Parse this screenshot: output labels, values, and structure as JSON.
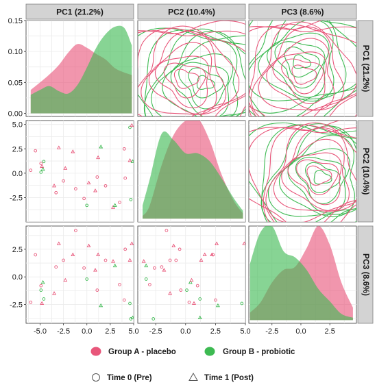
{
  "chart_data": {
    "type": "scatter",
    "title": "",
    "variables": [
      {
        "key": "PC1",
        "label": "PC1 (21.2%)"
      },
      {
        "key": "PC2",
        "label": "PC2 (10.4%)"
      },
      {
        "key": "PC3",
        "label": "PC3 (8.6%)"
      }
    ],
    "axes": {
      "x": {
        "PC1": {
          "range": [
            -6.5,
            5.0
          ],
          "ticks": [
            -5.0,
            -2.5,
            0.0,
            2.5,
            5.0
          ],
          "tick_labels": [
            "-5.0",
            "-2.5",
            "0.0",
            "2.5",
            "5.0"
          ]
        },
        "PC2": {
          "range": [
            -4.0,
            5.0
          ],
          "ticks": [
            -2.5,
            0.0,
            2.5,
            5.0
          ],
          "tick_labels": [
            "-2.5",
            "0.0",
            "2.5",
            "5.0"
          ]
        },
        "PC3": {
          "range": [
            -4.5,
            4.8
          ],
          "ticks": [
            -2.5,
            0.0,
            2.5
          ],
          "tick_labels": [
            "-2.5",
            "0.0",
            "2.5"
          ]
        }
      },
      "y": {
        "density": {
          "range": [
            -0.005,
            0.15
          ],
          "ticks": [
            0.0,
            0.05,
            0.1,
            0.15
          ],
          "tick_labels": [
            "0.00",
            "0.05",
            "0.10",
            "0.15"
          ]
        },
        "PC2": {
          "range": [
            -5.0,
            5.4
          ],
          "ticks": [
            -2.5,
            0.0,
            2.5,
            5.0
          ],
          "tick_labels": [
            "-2.5",
            "0.0",
            "2.5",
            "5.0"
          ]
        },
        "PC3": {
          "range": [
            -4.2,
            4.6
          ],
          "ticks": [
            -2.5,
            0.0,
            2.5
          ],
          "tick_labels": [
            "-2.5",
            "0.0",
            "2.5"
          ]
        }
      }
    },
    "groups": [
      {
        "key": "A",
        "name": "Group A - placebo",
        "color": "#e8567a"
      },
      {
        "key": "B",
        "name": "Group B - probiotic",
        "color": "#3dba52"
      }
    ],
    "times": [
      {
        "key": "T0",
        "name": "Time 0 (Pre)",
        "shape": "circle"
      },
      {
        "key": "T1",
        "name": "Time 1 (Post)",
        "shape": "triangle"
      }
    ],
    "density_PC1": {
      "x": [
        -6.0,
        -5.0,
        -4.0,
        -3.0,
        -2.0,
        -1.0,
        0.0,
        1.0,
        2.0,
        3.0,
        4.0,
        4.8
      ],
      "A": [
        0.038,
        0.05,
        0.063,
        0.078,
        0.098,
        0.112,
        0.106,
        0.096,
        0.087,
        0.073,
        0.066,
        0.062
      ],
      "B": [
        0.03,
        0.038,
        0.044,
        0.036,
        0.032,
        0.046,
        0.074,
        0.106,
        0.128,
        0.14,
        0.138,
        0.11
      ]
    },
    "density_PC2": {
      "x": [
        -3.6,
        -3.0,
        -2.0,
        -1.0,
        0.0,
        1.0,
        2.0,
        3.0,
        4.0,
        4.8
      ],
      "A": [
        0.004,
        0.02,
        0.082,
        0.128,
        0.15,
        0.154,
        0.12,
        0.068,
        0.028,
        0.008
      ],
      "B": [
        0.02,
        0.06,
        0.13,
        0.12,
        0.1,
        0.1,
        0.088,
        0.062,
        0.032,
        0.012
      ]
    },
    "density_PC3": {
      "x": [
        -4.4,
        -3.5,
        -2.5,
        -1.5,
        -0.5,
        0.5,
        1.5,
        2.5,
        3.5,
        4.5
      ],
      "A": [
        0.012,
        0.028,
        0.06,
        0.08,
        0.085,
        0.115,
        0.15,
        0.12,
        0.06,
        0.02
      ],
      "B": [
        0.09,
        0.14,
        0.15,
        0.11,
        0.1,
        0.08,
        0.05,
        0.03,
        0.01,
        0.004
      ]
    },
    "points": [
      {
        "g": "A",
        "t": "T0",
        "PC1": -6.0,
        "PC2": 0.3,
        "PC3": -2.3
      },
      {
        "g": "A",
        "t": "T0",
        "PC1": -5.5,
        "PC2": 2.3,
        "PC3": 2.0
      },
      {
        "g": "A",
        "t": "T1",
        "PC1": -4.8,
        "PC2": 0.7,
        "PC3": -2.4
      },
      {
        "g": "A",
        "t": "T0",
        "PC1": -4.9,
        "PC2": 1.0,
        "PC3": -0.8
      },
      {
        "g": "B",
        "t": "T0",
        "PC1": -4.9,
        "PC2": 0.1,
        "PC3": -1.2
      },
      {
        "g": "B",
        "t": "T1",
        "PC1": -4.7,
        "PC2": 0.4,
        "PC3": -0.5
      },
      {
        "g": "B",
        "t": "T0",
        "PC1": -4.6,
        "PC2": 1.2,
        "PC3": -2.0
      },
      {
        "g": "A",
        "t": "T1",
        "PC1": -3.5,
        "PC2": -1.3,
        "PC3": -1.5
      },
      {
        "g": "A",
        "t": "T0",
        "PC1": -3.3,
        "PC2": -2.0,
        "PC3": 0.9
      },
      {
        "g": "A",
        "t": "T1",
        "PC1": -3.0,
        "PC2": 2.6,
        "PC3": 3.0
      },
      {
        "g": "A",
        "t": "T0",
        "PC1": -2.5,
        "PC2": -0.8,
        "PC3": 1.5
      },
      {
        "g": "A",
        "t": "T1",
        "PC1": -2.3,
        "PC2": 0.5,
        "PC3": -0.3
      },
      {
        "g": "A",
        "t": "T1",
        "PC1": -1.5,
        "PC2": 2.2,
        "PC3": 2.0
      },
      {
        "g": "A",
        "t": "T0",
        "PC1": -1.2,
        "PC2": -1.6,
        "PC3": 4.2
      },
      {
        "g": "A",
        "t": "T0",
        "PC1": -0.3,
        "PC2": -2.6,
        "PC3": 0.8
      },
      {
        "g": "A",
        "t": "T1",
        "PC1": 0.2,
        "PC2": -1.0,
        "PC3": 2.8
      },
      {
        "g": "B",
        "t": "T0",
        "PC1": 0.0,
        "PC2": -3.3,
        "PC3": -0.2
      },
      {
        "g": "A",
        "t": "T1",
        "PC1": 0.9,
        "PC2": -1.8,
        "PC3": 0.6
      },
      {
        "g": "A",
        "t": "T0",
        "PC1": 1.1,
        "PC2": -0.4,
        "PC3": -1.2
      },
      {
        "g": "A",
        "t": "T1",
        "PC1": 1.2,
        "PC2": 1.6,
        "PC3": 2.0
      },
      {
        "g": "A",
        "t": "T0",
        "PC1": 2.0,
        "PC2": -1.3,
        "PC3": 1.5
      },
      {
        "g": "B",
        "t": "T1",
        "PC1": 1.5,
        "PC2": 2.7,
        "PC3": -2.6
      },
      {
        "g": "A",
        "t": "T1",
        "PC1": 2.8,
        "PC2": -3.5,
        "PC3": 1.4
      },
      {
        "g": "B",
        "t": "T1",
        "PC1": 3.0,
        "PC2": -3.3,
        "PC3": 1.0
      },
      {
        "g": "A",
        "t": "T0",
        "PC1": 3.5,
        "PC2": -3.0,
        "PC3": -0.7
      },
      {
        "g": "A",
        "t": "T0",
        "PC1": 4.0,
        "PC2": 2.5,
        "PC3": -2.1
      },
      {
        "g": "A",
        "t": "T0",
        "PC1": 4.1,
        "PC2": -0.5,
        "PC3": 2.5
      },
      {
        "g": "A",
        "t": "T1",
        "PC1": 4.6,
        "PC2": 1.3,
        "PC3": 1.5
      },
      {
        "g": "B",
        "t": "T0",
        "PC1": 4.6,
        "PC2": 4.7,
        "PC3": -2.4
      },
      {
        "g": "A",
        "t": "T1",
        "PC1": 4.8,
        "PC2": 4.9,
        "PC3": 3.0
      },
      {
        "g": "B",
        "t": "T0",
        "PC1": 4.7,
        "PC2": -2.7,
        "PC3": -3.8
      },
      {
        "g": "B",
        "t": "T1",
        "PC1": 4.9,
        "PC2": 1.2,
        "PC3": -3.7
      }
    ],
    "contour_centers": {
      "PC1_PC2": {
        "A": [
          0.0,
          -1.0
        ],
        "B": [
          1.6,
          -1.4
        ]
      },
      "PC1_PC3": {
        "A": [
          0.2,
          -0.6
        ],
        "B": [
          0.0,
          0.6
        ]
      },
      "PC2_PC3": {
        "A": [
          1.5,
          -0.4
        ],
        "B": [
          1.8,
          -0.6
        ]
      }
    },
    "grid": true,
    "legend_position": "bottom"
  }
}
